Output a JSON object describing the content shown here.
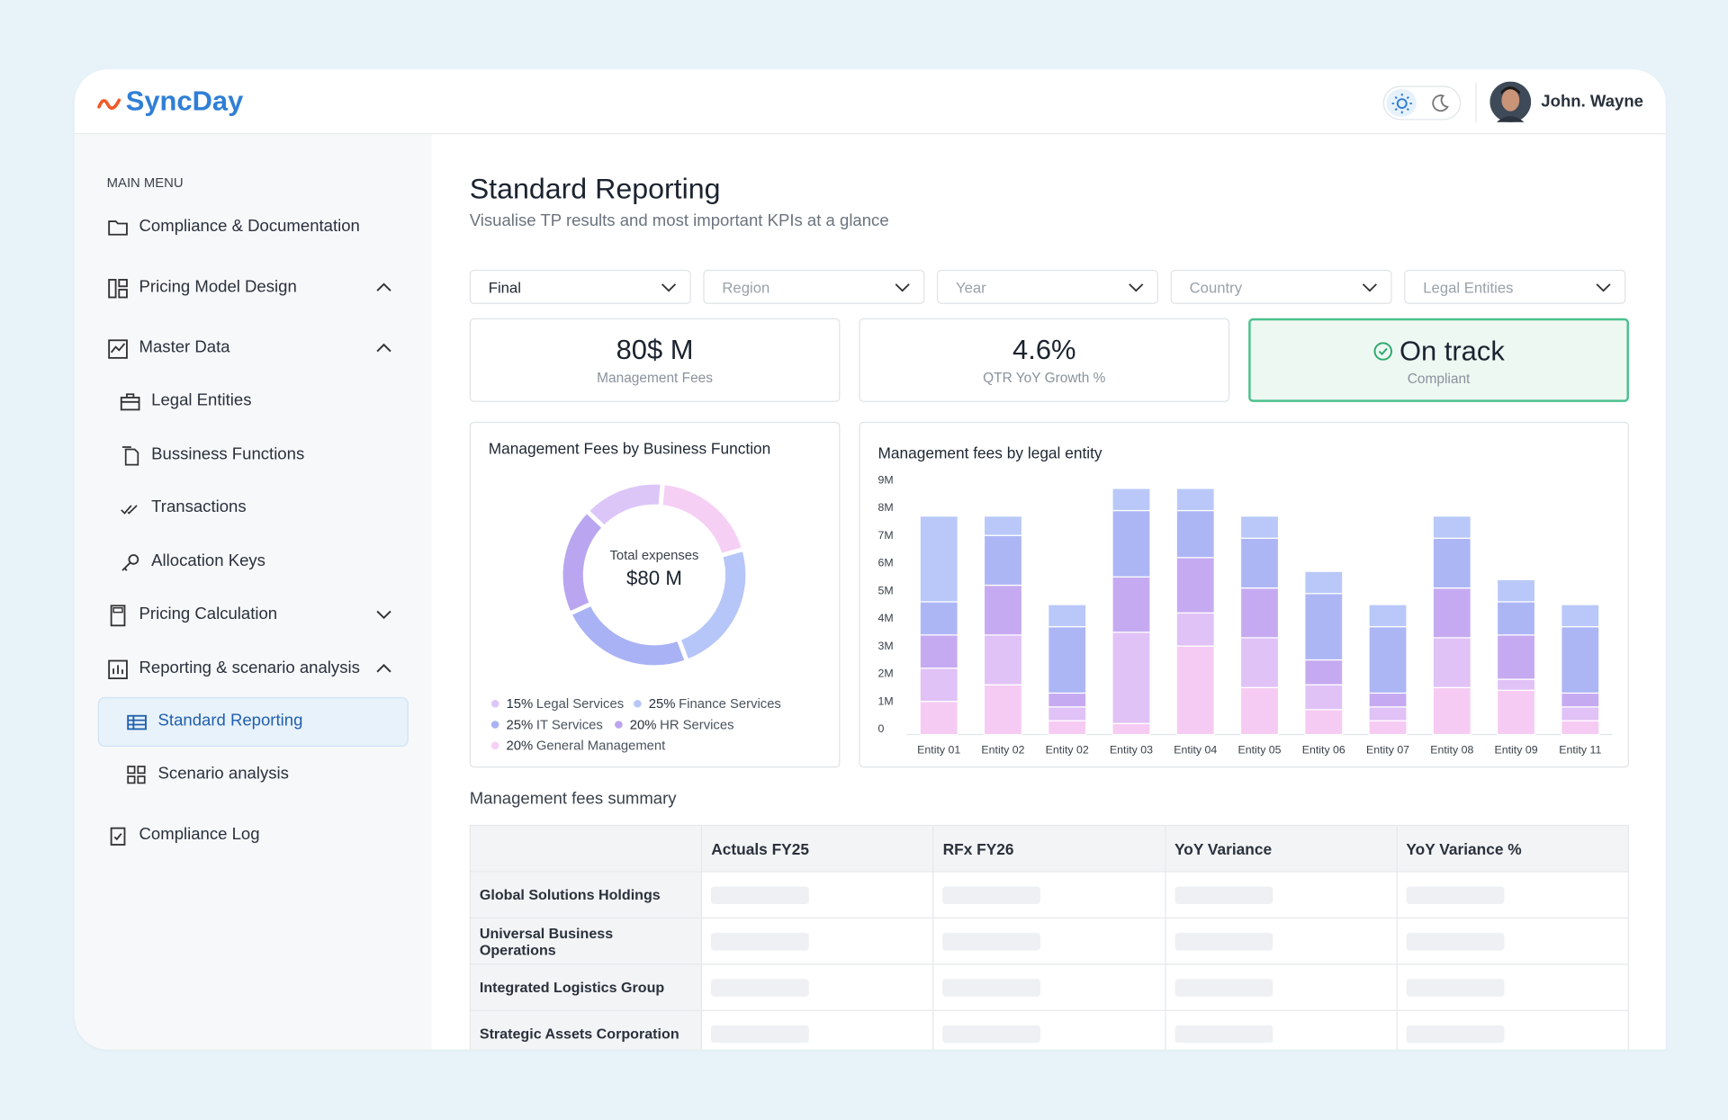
{
  "header": {
    "logo": "SyncDay",
    "user": "John. Wayne"
  },
  "sidebar": {
    "heading": "MAIN MENU",
    "items": [
      "Compliance & Documentation",
      "Pricing Model Design",
      "Master Data",
      "Legal Entities",
      "Bussiness Functions",
      "Transactions",
      "Allocation Keys",
      "Pricing Calculation",
      "Reporting & scenario analysis",
      "Standard Reporting",
      "Scenario analysis",
      "Compliance Log"
    ]
  },
  "page": {
    "title": "Standard Reporting",
    "subtitle": "Visualise TP results and most important KPIs at a glance"
  },
  "filters": [
    "Final",
    "Region",
    "Year",
    "Country",
    "Legal Entities"
  ],
  "kpis": [
    {
      "value": "80$ M",
      "label": "Management Fees"
    },
    {
      "value": "4.6%",
      "label": "QTR YoY Growth %"
    },
    {
      "value": "On track",
      "label": "Compliant"
    }
  ],
  "chart_data": [
    {
      "type": "donut",
      "title": "Management Fees by Business Function",
      "center_label": "Total expenses",
      "center_value": "$80 M",
      "categories": [
        "General Management",
        "Finance Services",
        "IT Services",
        "HR Services",
        "Legal Services"
      ],
      "values": [
        20,
        25,
        25,
        20,
        15
      ],
      "value_labels": [
        "20%",
        "25%",
        "25%",
        "20%",
        "15%"
      ],
      "colors": [
        "#f6cff5",
        "#b7c6f8",
        "#a9b2f4",
        "#baa6f0",
        "#dcc6f8"
      ]
    },
    {
      "type": "bar",
      "stacked": true,
      "title": "Management fees by legal entity",
      "categories": [
        "Entity 01",
        "Entity 02",
        "Entity 02",
        "Entity 03",
        "Entity 04",
        "Entity 05",
        "Entity 06",
        "Entity 07",
        "Entity 08",
        "Entity 09",
        "Entity 11"
      ],
      "series": [
        {
          "color": "#f6cbf3",
          "values": [
            1.2,
            1.8,
            0.5,
            0.4,
            3.2,
            1.7,
            0.9,
            0.5,
            1.7,
            1.6,
            0.5
          ]
        },
        {
          "color": "#e0c2f6",
          "values": [
            1.2,
            1.8,
            0.5,
            3.3,
            1.2,
            1.8,
            0.9,
            0.5,
            1.8,
            0.4,
            0.5
          ]
        },
        {
          "color": "#c6aaf1",
          "values": [
            1.2,
            1.8,
            0.5,
            2.0,
            2.0,
            1.8,
            0.9,
            0.5,
            1.8,
            1.6,
            0.5
          ]
        },
        {
          "color": "#adb6f5",
          "values": [
            1.2,
            1.8,
            2.4,
            2.4,
            1.7,
            1.8,
            2.4,
            2.4,
            1.8,
            1.2,
            2.4
          ]
        },
        {
          "color": "#b9c8f8",
          "values": [
            3.1,
            0.7,
            0.8,
            0.8,
            0.8,
            0.8,
            0.8,
            0.8,
            0.8,
            0.8,
            0.8
          ]
        }
      ],
      "ylim": [
        0,
        9
      ],
      "yticks": [
        0,
        {
          "value": 1,
          "label": "1M"
        },
        {
          "value": 2,
          "label": "2M"
        },
        {
          "value": 3,
          "label": "3M"
        },
        {
          "value": 4,
          "label": "4M"
        },
        {
          "value": 5,
          "label": "5M"
        },
        {
          "value": 6,
          "label": "6M"
        },
        {
          "value": 7,
          "label": "7M"
        },
        {
          "value": 8,
          "label": "8M"
        },
        {
          "value": 9,
          "label": "9M"
        }
      ]
    }
  ],
  "table": {
    "title": "Management fees summary",
    "columns": [
      "Actuals FY25",
      "RFx FY26",
      "YoY Variance",
      "YoY Variance %"
    ],
    "rows": [
      "Global Solutions Holdings",
      "Universal Business Operations",
      "Integrated Logistics Group",
      "Strategic Assets Corporation"
    ]
  }
}
